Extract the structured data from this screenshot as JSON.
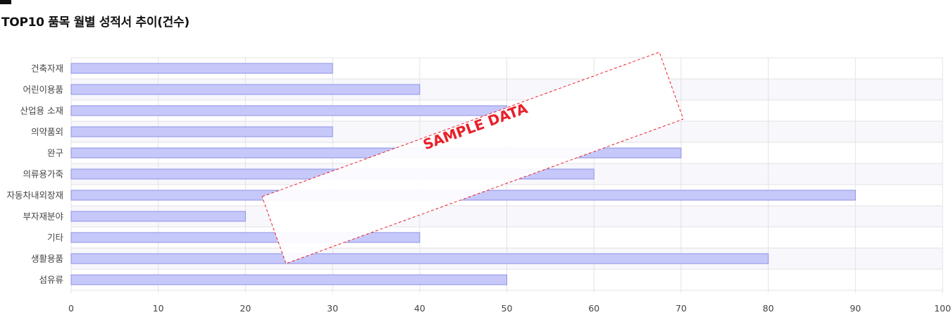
{
  "page": {
    "title": "TOP10 품목 월별 성적서 추이(건수)"
  },
  "watermark": {
    "text": "SAMPLE DATA",
    "color": "#e8202a"
  },
  "colors": {
    "bar_fill": "#c6c8fa",
    "bar_stroke": "#8e92e6",
    "grid": "#e3e3e3",
    "band": "#f7f7fc"
  },
  "chart_data": {
    "type": "bar",
    "orientation": "horizontal",
    "title": "TOP10 품목 월별 성적서 추이(건수)",
    "categories": [
      "건축자재",
      "어린이용품",
      "산업용 소재",
      "의약품외",
      "완구",
      "의류용가죽",
      "자동차내외장재",
      "부자재분야",
      "기타",
      "생활용품",
      "섬유류"
    ],
    "values": [
      30,
      40,
      50,
      30,
      70,
      60,
      90,
      20,
      40,
      80,
      50
    ],
    "xlim": [
      0,
      100
    ],
    "xticks": [
      0,
      10,
      20,
      30,
      40,
      50,
      60,
      70,
      80,
      90,
      100
    ],
    "grid": true,
    "legend": "none"
  }
}
